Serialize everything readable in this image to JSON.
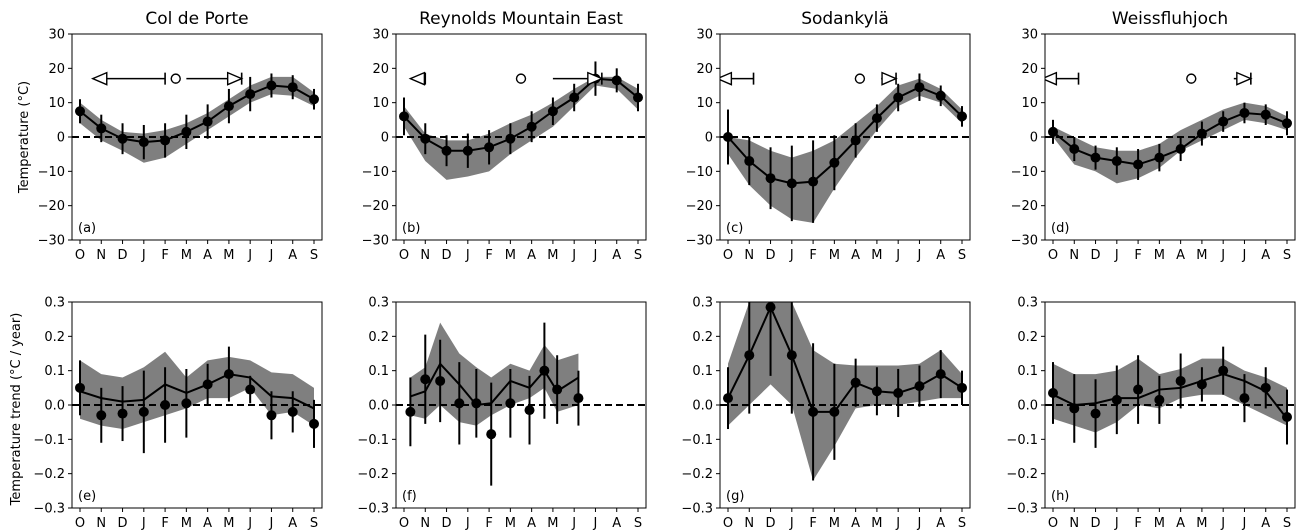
{
  "months": [
    "O",
    "N",
    "D",
    "J",
    "F",
    "M",
    "A",
    "M",
    "J",
    "J",
    "A",
    "S"
  ],
  "row_ylabels": [
    "Temperature (°C)",
    "Temperature trend (°C / year)"
  ],
  "chart_data": [
    {
      "type": "line",
      "panel": "(a)",
      "title": "Col de Porte",
      "row": 0,
      "col": 0,
      "ylim": [
        -30,
        30
      ],
      "yticks": [
        "30",
        "20",
        "10",
        "0",
        "−10",
        "−20",
        "−30"
      ],
      "ytick_values": [
        30,
        20,
        10,
        0,
        -10,
        -20,
        -30
      ],
      "mean": [
        7.5,
        2.5,
        -0.5,
        -1.5,
        -1,
        1.5,
        4.5,
        9,
        12.5,
        15,
        14.5,
        11
      ],
      "err": [
        3.5,
        4,
        4.5,
        5,
        5,
        5,
        5,
        5,
        5,
        3.5,
        3.5,
        3
      ],
      "band_upper": [
        10,
        5,
        1.5,
        1,
        2,
        4,
        7,
        11,
        15,
        17.5,
        17.5,
        13
      ],
      "band_lower": [
        4,
        -1,
        -4,
        -7.5,
        -6,
        -2,
        2,
        6,
        10,
        12.5,
        12,
        9
      ],
      "markers": {
        "open_circle": 4.5,
        "left_start": 4.0,
        "left_end": 0.6,
        "right_start": 5.0,
        "right_end": 7.6,
        "y": 17
      }
    },
    {
      "type": "line",
      "panel": "(b)",
      "title": "Reynolds Mountain East",
      "row": 0,
      "col": 1,
      "ylim": [
        -30,
        30
      ],
      "yticks": [
        "30",
        "20",
        "10",
        "0",
        "−10",
        "−20",
        "−30"
      ],
      "ytick_values": [
        30,
        20,
        10,
        0,
        -10,
        -20,
        -30
      ],
      "mean": [
        6,
        -0.5,
        -4,
        -4,
        -3,
        -0.5,
        3,
        7.5,
        11.5,
        17,
        16.5,
        11.5
      ],
      "err": [
        5.5,
        4.5,
        4.5,
        5,
        5,
        4.5,
        4.5,
        4,
        4,
        5,
        3.5,
        4
      ],
      "band_upper": [
        9,
        1,
        -1,
        -1,
        1,
        4,
        6.5,
        10,
        14,
        17.5,
        17.5,
        14
      ],
      "band_lower": [
        3,
        -7,
        -12.5,
        -11.5,
        -10,
        -5,
        -1,
        3,
        9,
        15,
        14,
        8
      ],
      "markers": {
        "open_circle": 5.5,
        "left_start": 1.0,
        "left_end": 0.3,
        "right_start": 7.0,
        "right_end": 9.3,
        "y": 17
      }
    },
    {
      "type": "line",
      "panel": "(c)",
      "title": "Sodankylä",
      "row": 0,
      "col": 2,
      "ylim": [
        -30,
        30
      ],
      "yticks": [
        "30",
        "20",
        "10",
        "0",
        "−10",
        "−20",
        "−30"
      ],
      "ytick_values": [
        30,
        20,
        10,
        0,
        -10,
        -20,
        -30
      ],
      "mean": [
        0,
        -7,
        -12,
        -13.5,
        -13,
        -7.5,
        -1,
        5.5,
        11.5,
        14.5,
        12,
        6
      ],
      "err": [
        8,
        7,
        9,
        11,
        12,
        8,
        5,
        4,
        4,
        4,
        3,
        3
      ],
      "band_upper": [
        0,
        -1,
        -4,
        -6,
        -4,
        -1,
        4,
        9,
        15,
        17,
        14,
        8
      ],
      "band_lower": [
        -5,
        -14,
        -20,
        -24,
        -25,
        -15,
        -6,
        2,
        9,
        12,
        10,
        4
      ],
      "markers": {
        "open_circle": 6.2,
        "left_start": 1.2,
        "left_end": -0.5,
        "right_start": 7.2,
        "right_end": 7.9,
        "y": 17
      }
    },
    {
      "type": "line",
      "panel": "(d)",
      "title": "Weissfluhjoch",
      "row": 0,
      "col": 3,
      "ylim": [
        -30,
        30
      ],
      "yticks": [
        "30",
        "20",
        "10",
        "0",
        "−10",
        "−20",
        "−30"
      ],
      "ytick_values": [
        30,
        20,
        10,
        0,
        -10,
        -20,
        -30
      ],
      "mean": [
        1.5,
        -3.5,
        -6,
        -7,
        -8,
        -6,
        -3.5,
        1,
        4.5,
        7,
        6.5,
        4
      ],
      "err": [
        3.5,
        3.5,
        3.5,
        4,
        4.5,
        4,
        3.5,
        3.5,
        3,
        3,
        3,
        3.5
      ],
      "band_upper": [
        3,
        0,
        -3,
        -4,
        -4,
        -2,
        2,
        5,
        8,
        10,
        9,
        6
      ],
      "band_lower": [
        0,
        -8,
        -10,
        -13.5,
        -12,
        -9,
        -4,
        -1,
        2,
        5,
        4,
        2
      ],
      "markers": {
        "open_circle": 6.5,
        "left_start": 1.2,
        "left_end": -0.5,
        "right_start": 8.5,
        "right_end": 9.3,
        "y": 17
      }
    },
    {
      "type": "line",
      "panel": "(e)",
      "title": "",
      "row": 1,
      "col": 0,
      "ylim": [
        -0.3,
        0.3
      ],
      "yticks": [
        "0.3",
        "0.2",
        "0.1",
        "0.0",
        "−0.1",
        "−0.2",
        "−0.3"
      ],
      "ytick_values": [
        0.3,
        0.2,
        0.1,
        0,
        -0.1,
        -0.2,
        -0.3
      ],
      "mean": [
        0.05,
        -0.03,
        -0.025,
        -0.02,
        0,
        0.005,
        0.06,
        0.09,
        0.045,
        -0.03,
        -0.02,
        -0.055
      ],
      "err": [
        0.08,
        0.08,
        0.08,
        0.12,
        0.11,
        0.1,
        0.06,
        0.08,
        0.04,
        0.07,
        0.06,
        0.07
      ],
      "line": [
        0.04,
        0.02,
        0.01,
        0.015,
        0.06,
        0.035,
        0.06,
        0.09,
        0.08,
        0.025,
        0.02,
        -0.01
      ],
      "band_upper": [
        0.13,
        0.09,
        0.08,
        0.11,
        0.155,
        0.08,
        0.13,
        0.14,
        0.13,
        0.095,
        0.09,
        0.05
      ],
      "band_lower": [
        -0.04,
        -0.06,
        -0.07,
        -0.05,
        -0.03,
        -0.01,
        0.02,
        0.02,
        0.05,
        -0.03,
        -0.02,
        -0.06
      ]
    },
    {
      "type": "line",
      "panel": "(f)",
      "title": "",
      "row": 1,
      "col": 1,
      "ylim": [
        -0.3,
        0.3
      ],
      "yticks": [
        "0.3",
        "0.2",
        "0.1",
        "0.0",
        "−0.1",
        "−0.2",
        "−0.3"
      ],
      "ytick_values": [
        0.3,
        0.2,
        0.1,
        0,
        -0.1,
        -0.2,
        -0.3
      ],
      "mean": [
        -0.02,
        0.075,
        0.07,
        0.005,
        0.005,
        -0.085,
        0.005,
        -0.015,
        0.1,
        0.045,
        0.02
      ],
      "err": [
        0.1,
        0.13,
        0.12,
        0.12,
        0.1,
        0.15,
        0.1,
        0.1,
        0.14,
        0.1,
        0.08
      ],
      "line": [
        0.025,
        0.04,
        0.12,
        0.06,
        0.0,
        0.005,
        0.07,
        0.05,
        0.1,
        0.04,
        0.08
      ],
      "band_upper": [
        0.08,
        0.11,
        0.24,
        0.15,
        0.11,
        0.08,
        0.12,
        0.1,
        0.175,
        0.13,
        0.15
      ],
      "band_lower": [
        -0.03,
        -0.04,
        0.0,
        -0.05,
        -0.06,
        -0.03,
        0.0,
        0.02,
        0.05,
        -0.02,
        0.0
      ],
      "x_positions": [
        0.3,
        1.0,
        1.7,
        2.6,
        3.4,
        4.1,
        5.0,
        5.9,
        6.6,
        7.2,
        8.2
      ]
    },
    {
      "type": "line",
      "panel": "(g)",
      "title": "",
      "row": 1,
      "col": 2,
      "ylim": [
        -0.3,
        0.3
      ],
      "yticks": [
        "0.3",
        "0.2",
        "0.1",
        "0.0",
        "−0.1",
        "−0.2",
        "−0.3"
      ],
      "ytick_values": [
        0.3,
        0.2,
        0.1,
        0,
        -0.1,
        -0.2,
        -0.3
      ],
      "mean": [
        0.02,
        0.145,
        0.285,
        0.145,
        -0.02,
        -0.02,
        0.065,
        0.04,
        0.035,
        0.055,
        0.09,
        0.05
      ],
      "err": [
        0.09,
        0.17,
        0.2,
        0.17,
        0.2,
        0.14,
        0.07,
        0.07,
        0.07,
        0.06,
        0.07,
        0.05
      ],
      "line": [
        0.02,
        0.145,
        0.285,
        0.145,
        -0.02,
        -0.02,
        0.065,
        0.04,
        0.035,
        0.055,
        0.09,
        0.05
      ],
      "band_upper": [
        0.12,
        0.3,
        0.3,
        0.3,
        0.16,
        0.12,
        0.115,
        0.115,
        0.115,
        0.12,
        0.16,
        0.09
      ],
      "band_lower": [
        -0.06,
        0.0,
        0.06,
        0.0,
        -0.22,
        -0.12,
        -0.01,
        0.0,
        0.0,
        0.01,
        0.02,
        0.02
      ]
    },
    {
      "type": "line",
      "panel": "(h)",
      "title": "",
      "row": 1,
      "col": 3,
      "ylim": [
        -0.3,
        0.3
      ],
      "yticks": [
        "0.3",
        "0.2",
        "0.1",
        "0.0",
        "−0.1",
        "−0.2",
        "−0.3"
      ],
      "ytick_values": [
        0.3,
        0.2,
        0.1,
        0,
        -0.1,
        -0.2,
        -0.3
      ],
      "mean": [
        0.035,
        -0.01,
        -0.025,
        0.015,
        0.045,
        0.015,
        0.07,
        0.06,
        0.1,
        0.02,
        0.05,
        -0.035
      ],
      "err": [
        0.09,
        0.1,
        0.1,
        0.1,
        0.1,
        0.07,
        0.08,
        0.05,
        0.07,
        0.07,
        0.06,
        0.08
      ],
      "line": [
        0.03,
        0.0,
        0.005,
        0.02,
        0.02,
        0.045,
        0.05,
        0.07,
        0.09,
        0.07,
        0.04,
        -0.04
      ],
      "band_upper": [
        0.12,
        0.09,
        0.09,
        0.1,
        0.135,
        0.09,
        0.105,
        0.135,
        0.135,
        0.1,
        0.08,
        0.05
      ],
      "band_lower": [
        -0.04,
        -0.06,
        -0.08,
        -0.05,
        0.0,
        -0.01,
        0.02,
        0.03,
        0.03,
        0.0,
        -0.03,
        -0.06
      ]
    }
  ]
}
